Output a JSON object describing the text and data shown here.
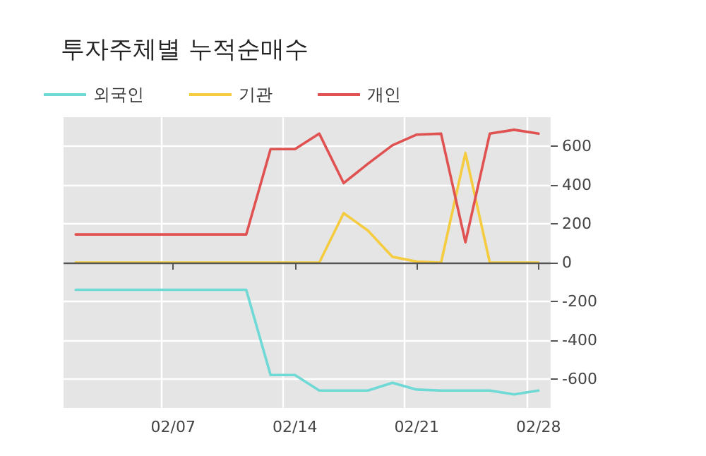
{
  "chart_data": {
    "type": "line",
    "title": "투자주체별 누적순매수",
    "categories": [
      null,
      null,
      null,
      null,
      "02/07",
      null,
      null,
      null,
      null,
      "02/14",
      null,
      null,
      null,
      null,
      "02/21",
      null,
      null,
      null,
      null,
      "02/28"
    ],
    "series": [
      {
        "name": "외국인",
        "color": "#6fd9d6",
        "values": [
          -140,
          -140,
          -140,
          -140,
          -140,
          -140,
          -140,
          -140,
          -580,
          -580,
          -660,
          -660,
          -660,
          -620,
          -655,
          -660,
          -660,
          -660,
          -680,
          -660
        ]
      },
      {
        "name": "기관",
        "color": "#f5cb3f",
        "values": [
          0,
          0,
          0,
          0,
          0,
          0,
          0,
          0,
          0,
          0,
          0,
          255,
          165,
          30,
          5,
          0,
          565,
          0,
          0,
          0
        ]
      },
      {
        "name": "개인",
        "color": "#e05252",
        "values": [
          145,
          145,
          145,
          145,
          145,
          145,
          145,
          145,
          585,
          585,
          665,
          410,
          510,
          605,
          660,
          665,
          105,
          665,
          685,
          665
        ]
      }
    ],
    "ylim": [
      -750,
      750
    ],
    "yticks": [
      -600,
      -400,
      -200,
      0,
      200,
      400,
      600
    ],
    "ref_lines": [
      {
        "axis": "y",
        "value": 0,
        "color": "#555555"
      }
    ],
    "grid": true,
    "legend": "top left",
    "marker": "none",
    "line_style": "solid"
  }
}
